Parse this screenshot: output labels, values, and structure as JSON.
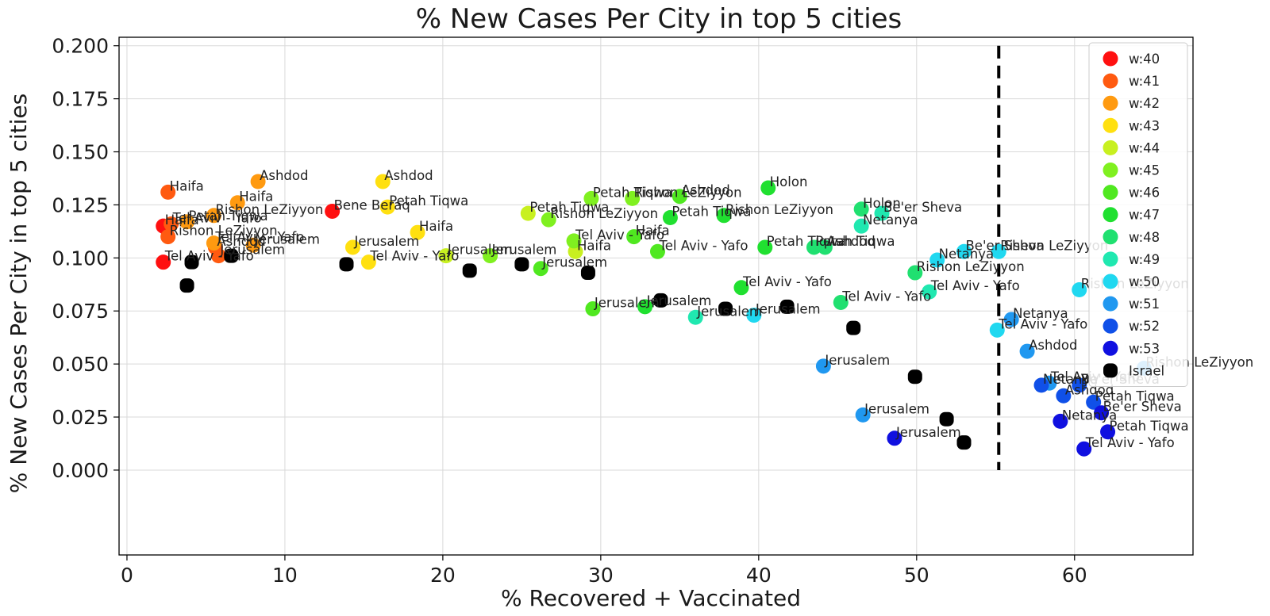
{
  "chart_data": {
    "type": "scatter",
    "title": "% New Cases Per City in top 5 cities",
    "xlabel": "% Recovered + Vaccinated",
    "ylabel": "% New Cases Per City in top 5 cities",
    "xlim": [
      -0.5,
      67.5
    ],
    "ylim": [
      -0.04,
      0.204
    ],
    "xticks": [
      0,
      10,
      20,
      30,
      40,
      50,
      60
    ],
    "yticks": [
      0.0,
      0.025,
      0.05,
      0.075,
      0.1,
      0.125,
      0.15,
      0.175,
      0.2
    ],
    "ytick_labels": [
      "0.000",
      "0.025",
      "0.050",
      "0.075",
      "0.100",
      "0.125",
      "0.150",
      "0.175",
      "0.200"
    ],
    "grid": true,
    "legend_position": "top-right",
    "threshold_line": {
      "x": 55.2,
      "y_range": [
        0.0,
        0.2
      ],
      "style": "dashed",
      "color": "#000000"
    },
    "series": [
      {
        "name": "w:40",
        "color": "#ff1010",
        "points": [
          {
            "x": 2.3,
            "y": 0.115,
            "label": "Haifa"
          },
          {
            "x": 13.0,
            "y": 0.122,
            "label": "Bene Beraq"
          },
          {
            "x": 2.3,
            "y": 0.098,
            "label": "Tel Aviv - Yafo"
          },
          {
            "x": 2.5,
            "y": 0.114,
            "label": ""
          }
        ]
      },
      {
        "name": "w:41",
        "color": "#ff5a10",
        "points": [
          {
            "x": 2.6,
            "y": 0.131,
            "label": "Haifa"
          },
          {
            "x": 2.6,
            "y": 0.11,
            "label": "Rishon LeZiyyon"
          },
          {
            "x": 2.8,
            "y": 0.116,
            "label": "Tel Aviv - Yafo"
          },
          {
            "x": 5.6,
            "y": 0.105,
            "label": "Ashdod"
          },
          {
            "x": 5.8,
            "y": 0.101,
            "label": "Jerusalem"
          }
        ]
      },
      {
        "name": "w:42",
        "color": "#ff9a10",
        "points": [
          {
            "x": 8.3,
            "y": 0.136,
            "label": "Ashdod"
          },
          {
            "x": 7.0,
            "y": 0.126,
            "label": "Haifa"
          },
          {
            "x": 5.5,
            "y": 0.12,
            "label": "Rishon LeZiyyon"
          },
          {
            "x": 3.8,
            "y": 0.117,
            "label": "Petah Tiqwa"
          },
          {
            "x": 8.0,
            "y": 0.106,
            "label": "Jerusalem"
          },
          {
            "x": 5.5,
            "y": 0.107,
            "label": "Tel Aviv - Yafo"
          }
        ]
      },
      {
        "name": "w:43",
        "color": "#ffe010",
        "points": [
          {
            "x": 16.2,
            "y": 0.136,
            "label": "Ashdod"
          },
          {
            "x": 16.5,
            "y": 0.124,
            "label": "Petah Tiqwa"
          },
          {
            "x": 18.4,
            "y": 0.112,
            "label": "Haifa"
          },
          {
            "x": 14.3,
            "y": 0.105,
            "label": "Jerusalem"
          },
          {
            "x": 15.3,
            "y": 0.098,
            "label": "Tel Aviv - Yafo"
          }
        ]
      },
      {
        "name": "w:44",
        "color": "#c8f020",
        "points": [
          {
            "x": 25.4,
            "y": 0.121,
            "label": "Petah Tiqwa"
          },
          {
            "x": 28.4,
            "y": 0.103,
            "label": "Haifa"
          },
          {
            "x": 20.2,
            "y": 0.101,
            "label": "Jerusalem"
          }
        ]
      },
      {
        "name": "w:45",
        "color": "#80f020",
        "points": [
          {
            "x": 29.4,
            "y": 0.128,
            "label": "Petah Tiqwa"
          },
          {
            "x": 32.0,
            "y": 0.128,
            "label": "Rishon LeZiyyon"
          },
          {
            "x": 26.7,
            "y": 0.118,
            "label": "Rishon LeZiyyon"
          },
          {
            "x": 28.3,
            "y": 0.108,
            "label": "Tel Aviv - Yafo"
          },
          {
            "x": 23.0,
            "y": 0.101,
            "label": "Jerusalem"
          }
        ]
      },
      {
        "name": "w:46",
        "color": "#50e820",
        "points": [
          {
            "x": 35.0,
            "y": 0.129,
            "label": "Ashdod"
          },
          {
            "x": 32.1,
            "y": 0.11,
            "label": "Haifa"
          },
          {
            "x": 26.2,
            "y": 0.095,
            "label": "Jerusalem"
          },
          {
            "x": 33.6,
            "y": 0.103,
            "label": "Tel Aviv - Yafo"
          },
          {
            "x": 29.5,
            "y": 0.076,
            "label": "Jerusalem"
          }
        ]
      },
      {
        "name": "w:47",
        "color": "#20e030",
        "points": [
          {
            "x": 40.6,
            "y": 0.133,
            "label": "Holon"
          },
          {
            "x": 37.8,
            "y": 0.12,
            "label": "Rishon LeZiyyon"
          },
          {
            "x": 34.4,
            "y": 0.119,
            "label": "Petah Tiqwa"
          },
          {
            "x": 40.4,
            "y": 0.105,
            "label": "Petah Tiqwa"
          },
          {
            "x": 38.9,
            "y": 0.086,
            "label": "Tel Aviv - Yafo"
          },
          {
            "x": 32.8,
            "y": 0.077,
            "label": "Jerusalem"
          }
        ]
      },
      {
        "name": "w:48",
        "color": "#20e070",
        "points": [
          {
            "x": 46.5,
            "y": 0.123,
            "label": "Holon"
          },
          {
            "x": 43.5,
            "y": 0.105,
            "label": "Petah Tiqwa"
          },
          {
            "x": 44.2,
            "y": 0.105,
            "label": "Ashdod"
          },
          {
            "x": 45.2,
            "y": 0.079,
            "label": "Tel Aviv - Yafo"
          },
          {
            "x": 49.9,
            "y": 0.093,
            "label": "Rishon LeZiyyon"
          }
        ]
      },
      {
        "name": "w:49",
        "color": "#20e8b0",
        "points": [
          {
            "x": 47.8,
            "y": 0.121,
            "label": "Be'er Sheva"
          },
          {
            "x": 46.5,
            "y": 0.115,
            "label": "Netanya"
          },
          {
            "x": 50.8,
            "y": 0.084,
            "label": "Tel Aviv - Yafo"
          },
          {
            "x": 36.0,
            "y": 0.072,
            "label": "Jerusalem"
          }
        ]
      },
      {
        "name": "w:50",
        "color": "#20d8f0",
        "points": [
          {
            "x": 53.0,
            "y": 0.103,
            "label": "Be'er Sheva"
          },
          {
            "x": 55.2,
            "y": 0.103,
            "label": "Rishon LeZiyyon"
          },
          {
            "x": 51.3,
            "y": 0.099,
            "label": "Netanya"
          },
          {
            "x": 60.3,
            "y": 0.085,
            "label": "Rishon LeZiyyon"
          },
          {
            "x": 55.1,
            "y": 0.066,
            "label": "Tel Aviv - Yafo"
          },
          {
            "x": 39.7,
            "y": 0.073,
            "label": "Jerusalem"
          }
        ]
      },
      {
        "name": "w:51",
        "color": "#2098f0",
        "points": [
          {
            "x": 56.0,
            "y": 0.071,
            "label": "Netanya"
          },
          {
            "x": 57.0,
            "y": 0.056,
            "label": "Ashdod"
          },
          {
            "x": 64.4,
            "y": 0.048,
            "label": "Rishon LeZiyyon"
          },
          {
            "x": 44.1,
            "y": 0.049,
            "label": "Jerusalem"
          },
          {
            "x": 46.6,
            "y": 0.026,
            "label": "Jerusalem"
          },
          {
            "x": 58.4,
            "y": 0.041,
            "label": "Tel Aviv - Yafo"
          }
        ]
      },
      {
        "name": "w:52",
        "color": "#1050e8",
        "points": [
          {
            "x": 57.9,
            "y": 0.04,
            "label": "Netanya"
          },
          {
            "x": 60.3,
            "y": 0.04,
            "label": "Be'er Sheva"
          },
          {
            "x": 59.3,
            "y": 0.035,
            "label": "Ashdod"
          },
          {
            "x": 61.2,
            "y": 0.032,
            "label": "Petah Tiqwa"
          }
        ]
      },
      {
        "name": "w:53",
        "color": "#1010e0",
        "points": [
          {
            "x": 61.7,
            "y": 0.027,
            "label": "Be'er Sheva"
          },
          {
            "x": 59.1,
            "y": 0.023,
            "label": "Netanya"
          },
          {
            "x": 62.1,
            "y": 0.018,
            "label": "Petah Tiqwa"
          },
          {
            "x": 60.6,
            "y": 0.01,
            "label": "Tel Aviv - Yafo"
          },
          {
            "x": 48.6,
            "y": 0.015,
            "label": "Jerusalem"
          }
        ]
      },
      {
        "name": "Israel",
        "color": "#000000",
        "points": [
          {
            "x": 3.8,
            "y": 0.087,
            "label": ""
          },
          {
            "x": 4.1,
            "y": 0.098,
            "label": ""
          },
          {
            "x": 6.6,
            "y": 0.101,
            "label": ""
          },
          {
            "x": 13.9,
            "y": 0.097,
            "label": ""
          },
          {
            "x": 21.7,
            "y": 0.094,
            "label": ""
          },
          {
            "x": 25.0,
            "y": 0.097,
            "label": ""
          },
          {
            "x": 29.2,
            "y": 0.093,
            "label": ""
          },
          {
            "x": 33.8,
            "y": 0.08,
            "label": ""
          },
          {
            "x": 37.9,
            "y": 0.076,
            "label": ""
          },
          {
            "x": 41.8,
            "y": 0.077,
            "label": ""
          },
          {
            "x": 46.0,
            "y": 0.067,
            "label": ""
          },
          {
            "x": 49.9,
            "y": 0.044,
            "label": ""
          },
          {
            "x": 51.9,
            "y": 0.024,
            "label": ""
          },
          {
            "x": 53.0,
            "y": 0.013,
            "label": ""
          }
        ]
      }
    ]
  }
}
